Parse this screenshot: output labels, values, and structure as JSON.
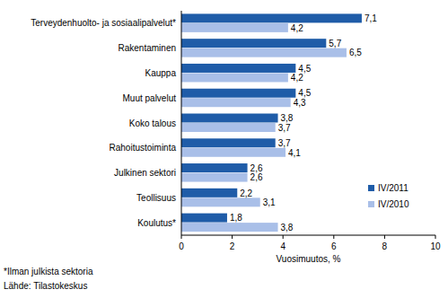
{
  "chart_data": {
    "type": "bar",
    "orientation": "horizontal",
    "categories": [
      "Terveydenhuolto- ja sosiaalipalvelut*",
      "Rakentaminen",
      "Kauppa",
      "Muut palvelut",
      "Koko talous",
      "Rahoitustoiminta",
      "Julkinen sektori",
      "Teollisuus",
      "Koulutus*"
    ],
    "series": [
      {
        "name": "IV/2011",
        "color": "#1f5ca8",
        "values": [
          7.1,
          5.7,
          4.5,
          4.5,
          3.8,
          3.7,
          2.6,
          2.2,
          1.8
        ],
        "value_labels": [
          "7,1",
          "5,7",
          "4,5",
          "4,5",
          "3,8",
          "3,7",
          "2,6",
          "2,2",
          "1,8"
        ]
      },
      {
        "name": "IV/2010",
        "color": "#a9bfe8",
        "values": [
          4.2,
          6.5,
          4.2,
          4.3,
          3.7,
          4.1,
          2.6,
          3.1,
          3.8
        ],
        "value_labels": [
          "4,2",
          "6,5",
          "4,2",
          "4,3",
          "3,7",
          "4,1",
          "2,6",
          "3,1",
          "3,8"
        ]
      }
    ],
    "x_label": "Vuosimuutos, %",
    "xlim": [
      0,
      10
    ],
    "xticks": [
      0,
      2,
      4,
      6,
      8,
      10
    ],
    "grid": false,
    "legend": "right",
    "data_labels": true,
    "annotations": [
      "*Ilman julkista sektoria",
      "Lähde: Tilastokeskus"
    ]
  }
}
